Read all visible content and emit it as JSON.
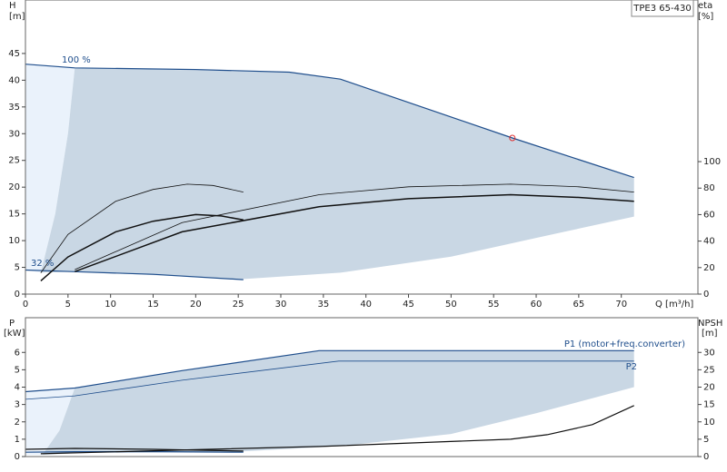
{
  "chart_data": [
    {
      "type": "line",
      "title": "TPE3 65-430",
      "y_label": "H",
      "y_unit": "[m]",
      "y2_label": "eta",
      "y2_unit": "[%]",
      "x_label": "Q [m³/h]",
      "annotations": [
        "100 %",
        "32 %"
      ],
      "xlim": [
        0,
        79
      ],
      "xticks": [
        0,
        5,
        10,
        15,
        20,
        25,
        30,
        35,
        40,
        45,
        50,
        55,
        60,
        65,
        70
      ],
      "ylim": [
        0,
        55
      ],
      "yticks": [
        0,
        5,
        10,
        15,
        20,
        25,
        30,
        35,
        40,
        45
      ],
      "y2lim": [
        0,
        222
      ],
      "y2ticks": [
        0,
        20,
        40,
        60,
        80,
        100
      ],
      "series": [
        {
          "kind": "area",
          "color": "#eaf2fb",
          "x": [
            0,
            5.8,
            5,
            3.5,
            1.8,
            0
          ],
          "values": [
            43,
            42.3,
            30,
            15,
            4,
            4.5
          ]
        },
        {
          "kind": "area",
          "color": "#c9d7e4",
          "x": [
            5.8,
            31,
            37,
            57.2,
            71.5,
            71.5,
            60,
            50,
            37,
            25.5,
            5.8,
            1.8,
            3.5,
            5
          ],
          "values": [
            42.3,
            41.5,
            40.2,
            29.2,
            21.8,
            14.5,
            10.5,
            7,
            4,
            2.8,
            4.2,
            4,
            15,
            30
          ]
        },
        {
          "kind": "line",
          "color": "#1f4e8c",
          "width": 1.2,
          "x": [
            0,
            5.8,
            20,
            31,
            37,
            57.2,
            71.5
          ],
          "values": [
            43,
            42.3,
            42,
            41.5,
            40.2,
            29.2,
            21.8
          ]
        },
        {
          "kind": "line",
          "color": "#1f4e8c",
          "width": 1.2,
          "x": [
            0,
            5.8,
            15,
            25.6
          ],
          "values": [
            4.5,
            4.2,
            3.7,
            2.7
          ]
        },
        {
          "kind": "line",
          "color": "#111",
          "width": 0.8,
          "axis": "y2",
          "x": [
            1.8,
            5,
            10.6,
            15,
            19,
            22,
            25.6
          ],
          "values": [
            16,
            45,
            70,
            79,
            83,
            82,
            77
          ]
        },
        {
          "kind": "line",
          "color": "#111",
          "width": 1.5,
          "axis": "y2",
          "x": [
            1.8,
            5,
            10.6,
            15,
            20,
            23,
            25.6
          ],
          "values": [
            10,
            28,
            47,
            55,
            60,
            59,
            56
          ]
        },
        {
          "kind": "line",
          "color": "#111",
          "width": 0.8,
          "axis": "y2",
          "x": [
            5.8,
            18.4,
            34.5,
            45,
            57,
            65,
            71.5
          ],
          "values": [
            18.5,
            54,
            75,
            81,
            83,
            81,
            77
          ]
        },
        {
          "kind": "line",
          "color": "#111",
          "width": 1.5,
          "axis": "y2",
          "x": [
            5.8,
            18.4,
            34.5,
            45,
            57,
            65,
            71.5
          ],
          "values": [
            17,
            47,
            66,
            72,
            75,
            73,
            70
          ]
        }
      ],
      "operating_point": {
        "x": 57.2,
        "y": 29.2,
        "color": "#e03030"
      }
    },
    {
      "type": "line",
      "y_label": "P",
      "y_unit": "[kW]",
      "y2_label": "NPSH",
      "y2_unit": "[m]",
      "annotations": [
        "P1 (motor+freq.converter)",
        "P2"
      ],
      "xlim": [
        0,
        79
      ],
      "ylim": [
        0,
        8
      ],
      "yticks": [
        0,
        1,
        2,
        3,
        4,
        5,
        6
      ],
      "y2lim": [
        0,
        40
      ],
      "y2ticks": [
        0,
        5,
        10,
        15,
        20,
        25,
        30
      ],
      "series": [
        {
          "kind": "area",
          "color": "#eaf2fb",
          "x": [
            0,
            5.8,
            4,
            2,
            0
          ],
          "values": [
            3.74,
            3.95,
            1.5,
            0.1,
            0.1
          ]
        },
        {
          "kind": "area",
          "color": "#c9d7e4",
          "x": [
            5.8,
            18.4,
            34.5,
            71.5,
            71.5,
            60,
            50,
            37,
            25.5,
            5.8,
            2,
            4
          ],
          "values": [
            3.95,
            4.95,
            6.1,
            6.1,
            4,
            2.5,
            1.3,
            0.6,
            0.3,
            0.2,
            0.1,
            1.5
          ]
        },
        {
          "kind": "line",
          "color": "#1f4e8c",
          "width": 1.2,
          "x": [
            0,
            5.8,
            18.4,
            34.5,
            71.5
          ],
          "values": [
            3.74,
            3.95,
            4.95,
            6.1,
            6.1
          ]
        },
        {
          "kind": "line",
          "color": "#1f4e8c",
          "width": 0.8,
          "x": [
            0,
            5.8,
            18.4,
            36.8,
            71.5
          ],
          "values": [
            3.3,
            3.5,
            4.4,
            5.5,
            5.5
          ]
        },
        {
          "kind": "line",
          "color": "#111",
          "width": 1.2,
          "x": [
            0,
            5.8,
            15,
            25.6
          ],
          "values": [
            0.42,
            0.47,
            0.42,
            0.32
          ]
        },
        {
          "kind": "line",
          "color": "#1f4e8c",
          "width": 1.2,
          "x": [
            0,
            5.8,
            15,
            25.6
          ],
          "values": [
            0.25,
            0.28,
            0.28,
            0.25
          ]
        },
        {
          "kind": "line",
          "color": "#111",
          "width": 1.2,
          "axis": "y2",
          "x": [
            1.8,
            20,
            34.5,
            57,
            61.3,
            66.6,
            71.5
          ],
          "values": [
            0.8,
            2,
            2.9,
            5,
            6.3,
            9.2,
            14.7
          ]
        }
      ]
    }
  ]
}
